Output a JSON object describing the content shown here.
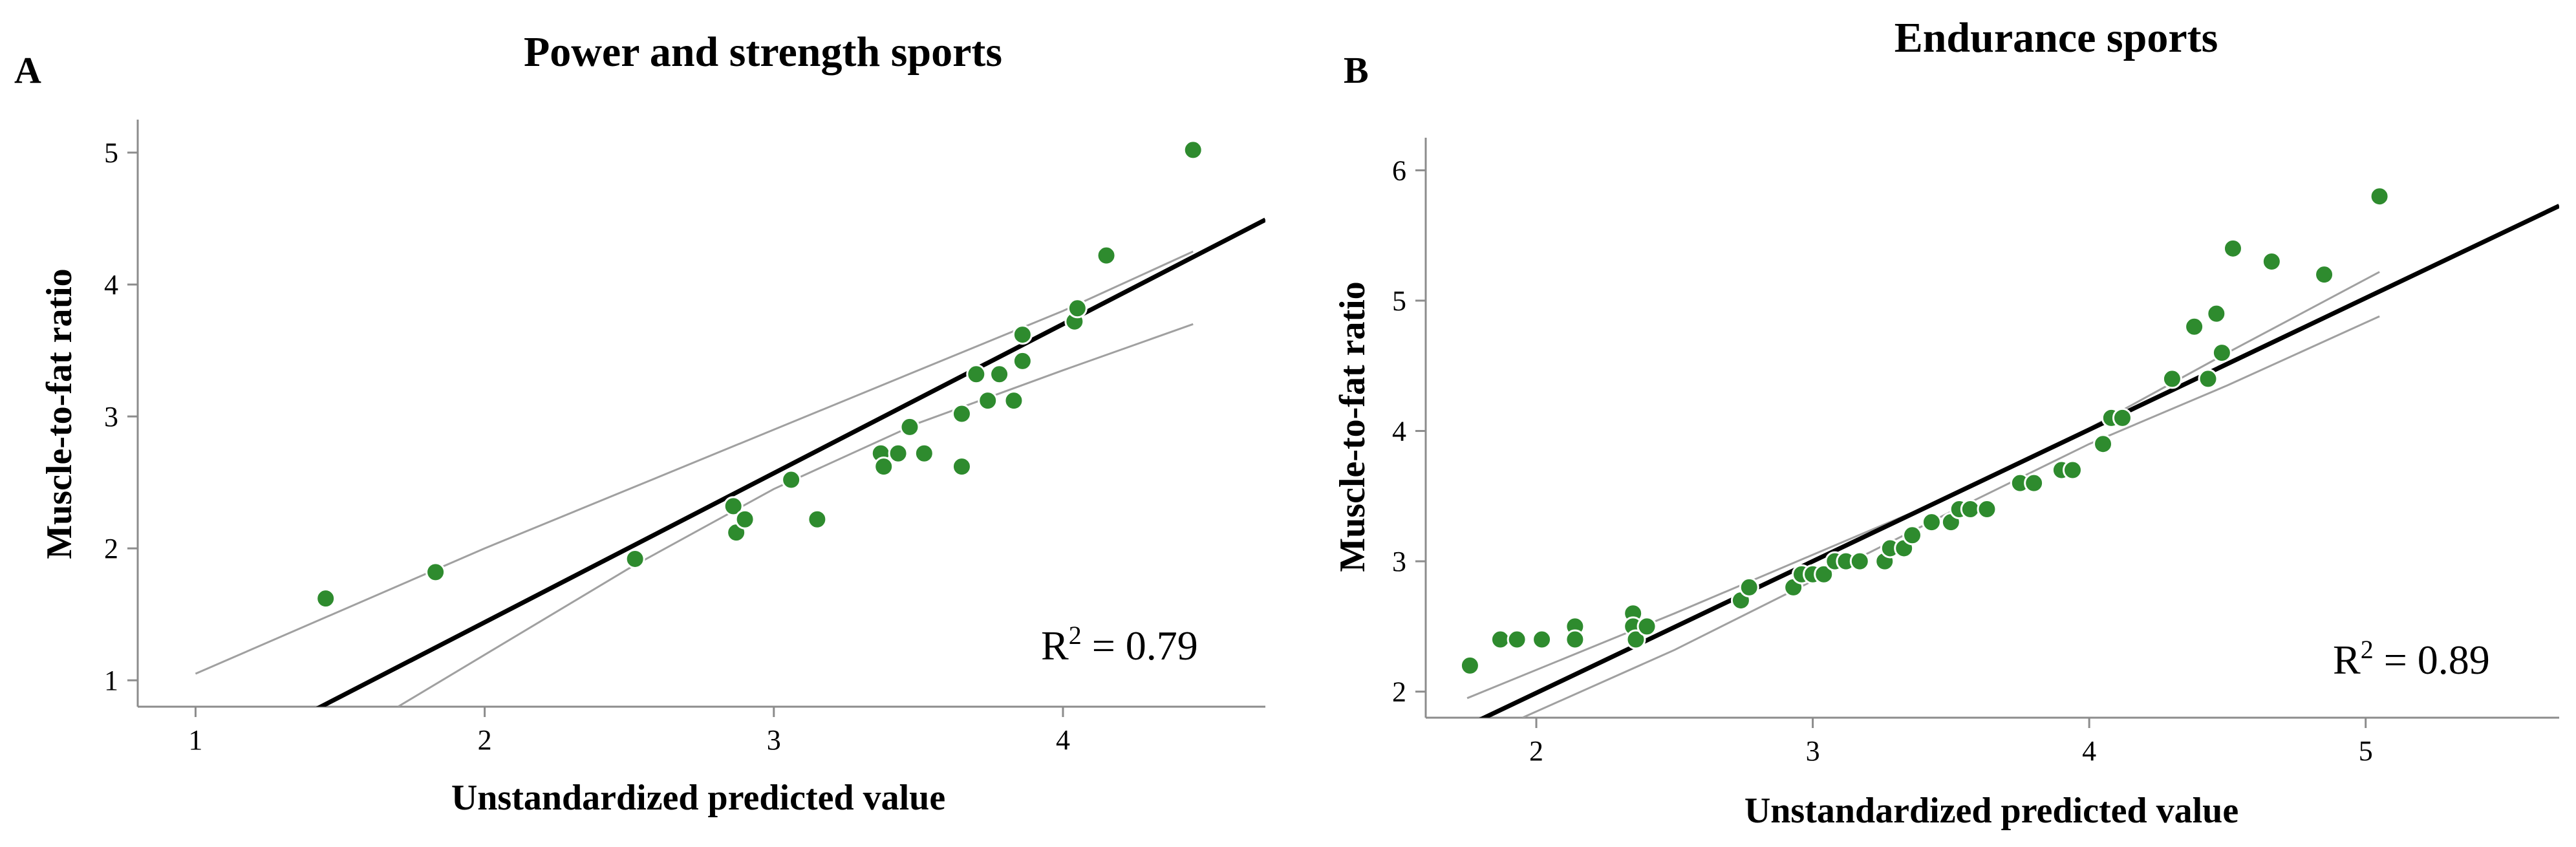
{
  "chart_data": [
    {
      "type": "scatter",
      "panel_label": "A",
      "title": "Power and strength sports",
      "xlabel": "Unstandardized predicted value",
      "ylabel": "Muscle-to-fat ratio",
      "r2_label": "R",
      "r2_sup": "2",
      "r2_value": " = 0.79",
      "xlim": [
        0.8,
        4.7
      ],
      "ylim": [
        0.8,
        5.25
      ],
      "xticks": [
        1,
        2,
        3,
        4
      ],
      "yticks": [
        1,
        2,
        3,
        4,
        5
      ],
      "color": "#2e8b2e",
      "fit": {
        "intercept": -0.82,
        "slope": 1.13
      },
      "ci_upper": [
        [
          1.0,
          1.05
        ],
        [
          2.0,
          2.0
        ],
        [
          3.0,
          2.9
        ],
        [
          4.0,
          3.8
        ],
        [
          4.45,
          4.25
        ]
      ],
      "ci_lower": [
        [
          1.7,
          0.8
        ],
        [
          2.5,
          1.85
        ],
        [
          3.0,
          2.45
        ],
        [
          3.5,
          2.95
        ],
        [
          4.0,
          3.35
        ],
        [
          4.45,
          3.7
        ]
      ],
      "points": [
        [
          1.45,
          1.62
        ],
        [
          1.83,
          1.82
        ],
        [
          2.52,
          1.92
        ],
        [
          2.86,
          2.32
        ],
        [
          2.87,
          2.12
        ],
        [
          2.9,
          2.22
        ],
        [
          3.06,
          2.52
        ],
        [
          3.15,
          2.22
        ],
        [
          3.37,
          2.72
        ],
        [
          3.38,
          2.62
        ],
        [
          3.43,
          2.72
        ],
        [
          3.47,
          2.92
        ],
        [
          3.52,
          2.72
        ],
        [
          3.65,
          2.62
        ],
        [
          3.65,
          3.02
        ],
        [
          3.7,
          3.32
        ],
        [
          3.74,
          3.12
        ],
        [
          3.78,
          3.32
        ],
        [
          3.83,
          3.12
        ],
        [
          3.86,
          3.62
        ],
        [
          3.86,
          3.42
        ],
        [
          4.04,
          3.72
        ],
        [
          4.05,
          3.82
        ],
        [
          4.15,
          4.22
        ],
        [
          4.45,
          5.02
        ]
      ]
    },
    {
      "type": "scatter",
      "panel_label": "B",
      "title": "Endurance sports",
      "xlabel": "Unstandardized predicted value",
      "ylabel": "Muscle-to-fat ratio",
      "r2_label": "R",
      "r2_sup": "2",
      "r2_value": " = 0.89",
      "xlim": [
        1.6,
        5.7
      ],
      "ylim": [
        1.8,
        6.25
      ],
      "xticks": [
        2,
        3,
        4,
        5
      ],
      "yticks": [
        2,
        3,
        4,
        5,
        6
      ],
      "color": "#2e8b2e",
      "fit": {
        "intercept": -0.03,
        "slope": 1.01
      },
      "ci_upper": [
        [
          1.75,
          1.95
        ],
        [
          2.5,
          2.6
        ],
        [
          3.0,
          3.05
        ],
        [
          3.5,
          3.5
        ],
        [
          4.0,
          4.02
        ],
        [
          4.5,
          4.6
        ],
        [
          5.05,
          5.22
        ]
      ],
      "ci_lower": [
        [
          1.95,
          1.8
        ],
        [
          2.5,
          2.32
        ],
        [
          3.0,
          2.85
        ],
        [
          3.5,
          3.38
        ],
        [
          4.0,
          3.9
        ],
        [
          4.5,
          4.35
        ],
        [
          5.05,
          4.88
        ]
      ],
      "points": [
        [
          1.76,
          2.2
        ],
        [
          1.87,
          2.4
        ],
        [
          1.93,
          2.4
        ],
        [
          2.02,
          2.4
        ],
        [
          2.14,
          2.5
        ],
        [
          2.14,
          2.4
        ],
        [
          2.35,
          2.6
        ],
        [
          2.35,
          2.5
        ],
        [
          2.36,
          2.4
        ],
        [
          2.4,
          2.5
        ],
        [
          2.74,
          2.7
        ],
        [
          2.77,
          2.8
        ],
        [
          2.93,
          2.8
        ],
        [
          2.96,
          2.9
        ],
        [
          3.0,
          2.9
        ],
        [
          3.04,
          2.9
        ],
        [
          3.08,
          3.0
        ],
        [
          3.12,
          3.0
        ],
        [
          3.17,
          3.0
        ],
        [
          3.26,
          3.0
        ],
        [
          3.28,
          3.1
        ],
        [
          3.33,
          3.1
        ],
        [
          3.36,
          3.2
        ],
        [
          3.43,
          3.3
        ],
        [
          3.5,
          3.3
        ],
        [
          3.53,
          3.4
        ],
        [
          3.57,
          3.4
        ],
        [
          3.63,
          3.4
        ],
        [
          3.75,
          3.6
        ],
        [
          3.8,
          3.6
        ],
        [
          3.9,
          3.7
        ],
        [
          3.94,
          3.7
        ],
        [
          4.05,
          3.9
        ],
        [
          4.08,
          4.1
        ],
        [
          4.12,
          4.1
        ],
        [
          4.3,
          4.4
        ],
        [
          4.38,
          4.8
        ],
        [
          4.43,
          4.4
        ],
        [
          4.46,
          4.9
        ],
        [
          4.48,
          4.6
        ],
        [
          4.52,
          5.4
        ],
        [
          4.66,
          5.3
        ],
        [
          4.85,
          5.2
        ],
        [
          5.05,
          5.8
        ]
      ]
    }
  ]
}
